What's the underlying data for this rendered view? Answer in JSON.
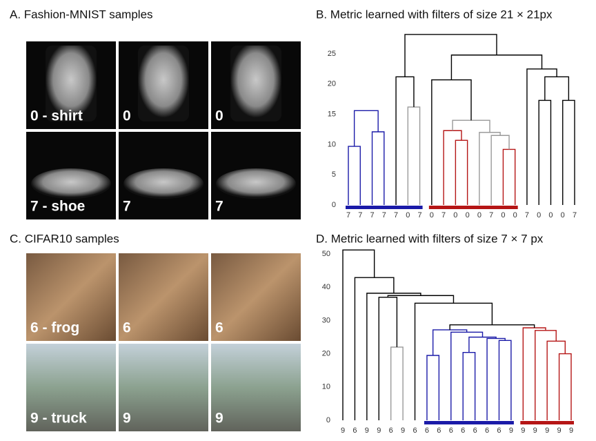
{
  "panel_a": {
    "title": "A. Fashion-MNIST samples",
    "labels": [
      "0 - shirt",
      "0",
      "0",
      "7 - shoe",
      "7",
      "7"
    ]
  },
  "panel_c": {
    "title": "C. CIFAR10 samples",
    "labels": [
      "6 - frog",
      "6",
      "6",
      "9 - truck",
      "9",
      "9"
    ]
  },
  "panel_b": {
    "title": "B. Metric learned with filters of size 21 × 21px",
    "ylim": [
      0,
      25
    ],
    "yticks": [
      0,
      5,
      10,
      15,
      20,
      25
    ],
    "leaves": [
      "7",
      "7",
      "7",
      "7",
      "7",
      "0",
      "7",
      "0",
      "7",
      "0",
      "0",
      "0",
      "7",
      "0",
      "0",
      "7",
      "0",
      "0",
      "0",
      "7"
    ],
    "links": [
      {
        "left": 0,
        "right": 1,
        "height": 9.7,
        "color": "#1a1aa8"
      },
      {
        "left": 2,
        "right": 3,
        "height": 12.1,
        "color": "#1a1aa8"
      },
      {
        "left": 20,
        "right": 21,
        "height": 15.6,
        "color": "#1a1aa8"
      },
      {
        "left": 5,
        "right": 6,
        "height": 16.2,
        "color": "#999999"
      },
      {
        "left": 4,
        "right": 23,
        "height": 21.2,
        "color": "#000000"
      },
      {
        "left": 9,
        "right": 10,
        "height": 10.7,
        "color": "#b51515"
      },
      {
        "left": 8,
        "right": 25,
        "height": 12.3,
        "color": "#b51515"
      },
      {
        "left": 13,
        "right": 14,
        "height": 9.2,
        "color": "#b51515"
      },
      {
        "left": 12,
        "right": 27,
        "height": 11.5,
        "color": "#999999"
      },
      {
        "left": 11,
        "right": 28,
        "height": 12.0,
        "color": "#999999"
      },
      {
        "left": 26,
        "right": 29,
        "height": 14.0,
        "color": "#999999"
      },
      {
        "left": 7,
        "right": 30,
        "height": 20.7,
        "color": "#000000"
      },
      {
        "left": 16,
        "right": 17,
        "height": 17.3,
        "color": "#000000"
      },
      {
        "left": 18,
        "right": 19,
        "height": 17.3,
        "color": "#000000"
      },
      {
        "left": 32,
        "right": 33,
        "height": 21.2,
        "color": "#000000"
      },
      {
        "left": 15,
        "right": 34,
        "height": 22.5,
        "color": "#000000"
      },
      {
        "left": 31,
        "right": 35,
        "height": 24.8,
        "color": "#000000"
      },
      {
        "left": 24,
        "right": 36,
        "height": 28.2,
        "color": "#000000"
      }
    ],
    "groups": [
      {
        "from": 0,
        "to": 6,
        "color": "#1a1aa8"
      },
      {
        "from": 7,
        "to": 14,
        "color": "#b51515"
      }
    ]
  },
  "panel_d": {
    "title": "D. Metric learned with filters of size 7 × 7  px",
    "ylim": [
      0,
      50
    ],
    "yticks": [
      0,
      10,
      20,
      30,
      40,
      50
    ],
    "leaves": [
      "9",
      "6",
      "9",
      "9",
      "6",
      "9",
      "6",
      "6",
      "6",
      "6",
      "6",
      "6",
      "6",
      "6",
      "9",
      "9",
      "9",
      "9",
      "9",
      "9"
    ],
    "links": [
      {
        "left": 4,
        "right": 5,
        "height": 22.0,
        "color": "#999999"
      },
      {
        "left": 3,
        "right": 20,
        "height": 37.0,
        "color": "#000000"
      },
      {
        "left": 7,
        "right": 8,
        "height": 19.5,
        "color": "#1a1aa8"
      },
      {
        "left": 10,
        "right": 11,
        "height": 20.4,
        "color": "#1a1aa8"
      },
      {
        "left": 13,
        "right": 14,
        "height": 24.0,
        "color": "#1a1aa8"
      },
      {
        "left": 12,
        "right": 24,
        "height": 24.6,
        "color": "#1a1aa8"
      },
      {
        "left": 23,
        "right": 25,
        "height": 25.0,
        "color": "#1a1aa8"
      },
      {
        "left": 9,
        "right": 26,
        "height": 26.5,
        "color": "#1a1aa8"
      },
      {
        "left": 22,
        "right": 27,
        "height": 27.2,
        "color": "#1a1aa8"
      },
      {
        "left": 18,
        "right": 19,
        "height": 20.0,
        "color": "#b51515"
      },
      {
        "left": 17,
        "right": 29,
        "height": 23.8,
        "color": "#b51515"
      },
      {
        "left": 16,
        "right": 30,
        "height": 27.0,
        "color": "#b51515"
      },
      {
        "left": 15,
        "right": 31,
        "height": 27.8,
        "color": "#b51515"
      },
      {
        "left": 28,
        "right": 32,
        "height": 28.7,
        "color": "#000000"
      },
      {
        "left": 6,
        "right": 33,
        "height": 35.2,
        "color": "#000000"
      },
      {
        "left": 21,
        "right": 34,
        "height": 37.5,
        "color": "#000000"
      },
      {
        "left": 2,
        "right": 35,
        "height": 38.2,
        "color": "#000000"
      },
      {
        "left": 1,
        "right": 36,
        "height": 42.9,
        "color": "#000000"
      },
      {
        "left": 0,
        "right": 37,
        "height": 51.2,
        "color": "#000000"
      }
    ],
    "groups": [
      {
        "from": 7,
        "to": 14,
        "color": "#1a1aa8"
      },
      {
        "from": 15,
        "to": 19,
        "color": "#b51515"
      }
    ]
  }
}
